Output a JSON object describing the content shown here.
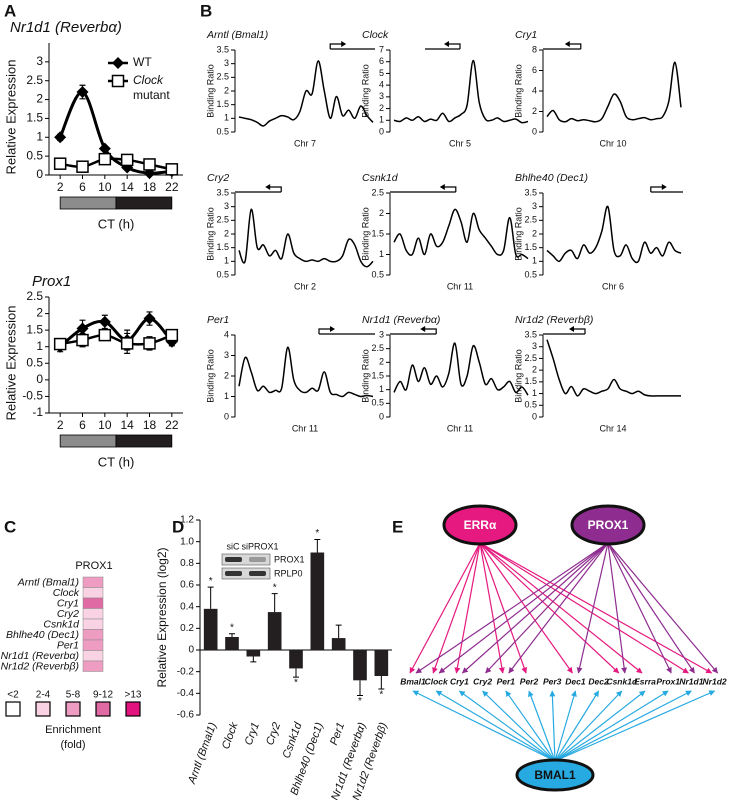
{
  "panel_labels": [
    "A",
    "B",
    "C",
    "D",
    "E"
  ],
  "chart_data": [
    {
      "type": "line",
      "title": "Nr1d1 (Reverbα)",
      "x": [
        2,
        6,
        10,
        14,
        18,
        22
      ],
      "xlim": [
        0,
        24
      ],
      "xticks": [
        2,
        6,
        10,
        14,
        18,
        22
      ],
      "ylim": [
        0,
        3.5
      ],
      "yticks": [
        0,
        0.5,
        1,
        1.5,
        2,
        2.5,
        3
      ],
      "y_label": "Relative Expression",
      "x_label": "CT (h)",
      "legend": "upper right",
      "series": [
        {
          "name": "WT",
          "color": "#000000",
          "marker": "diamond",
          "values": [
            1.0,
            2.2,
            0.7,
            0.2,
            0.05,
            0.1
          ],
          "errors": [
            0.08,
            0.18,
            0.05,
            0.04,
            0.03,
            0.03
          ]
        },
        {
          "name": "Clock mutant",
          "color": "#000000",
          "marker": "square",
          "values": [
            0.3,
            0.22,
            0.42,
            0.4,
            0.28,
            0.15
          ],
          "errors": [
            0.05,
            0.04,
            0.06,
            0.05,
            0.04,
            0.03
          ]
        }
      ]
    },
    {
      "type": "line",
      "title": "Prox1",
      "x": [
        2,
        6,
        10,
        14,
        18,
        22
      ],
      "xlim": [
        0,
        24
      ],
      "xticks": [
        2,
        6,
        10,
        14,
        18,
        22
      ],
      "ylim": [
        -1,
        2.5
      ],
      "yticks": [
        -1,
        -0.5,
        0,
        0.5,
        1,
        1.5,
        2,
        2.5
      ],
      "y_label": "Relative Expression",
      "x_label": "CT (h)",
      "series": [
        {
          "color": "#000000",
          "marker": "diamond",
          "values": [
            1.0,
            1.55,
            1.75,
            1.2,
            1.85,
            1.15
          ],
          "errors": [
            0.15,
            0.25,
            0.2,
            0.3,
            0.2,
            0.12
          ]
        },
        {
          "color": "#000000",
          "marker": "square",
          "values": [
            1.08,
            1.2,
            1.35,
            1.1,
            1.1,
            1.35
          ],
          "errors": [
            0.15,
            0.2,
            0.15,
            0.3,
            0.2,
            0.1
          ]
        }
      ]
    },
    {
      "type": "line",
      "title": "Arntl (Bmal1)",
      "x_label": "Chr 7",
      "y_label": "Binding Ratio",
      "ylim": [
        0.5,
        3.5
      ],
      "yticks": [
        0.5,
        1,
        1.5,
        2,
        2.5,
        3,
        3.5
      ],
      "color": "#000000",
      "values": [
        1.05,
        1.0,
        0.95,
        0.85,
        0.72,
        0.9,
        1.0,
        1.1,
        1.05,
        0.95,
        1.25,
        2.0,
        1.9,
        3.1,
        2.0,
        1.0,
        1.8,
        1.1,
        1.3,
        1.0,
        1.45,
        1.1,
        0.85
      ]
    },
    {
      "type": "line",
      "title": "Clock",
      "x_label": "Chr 5",
      "y_label": "Binding Ratio",
      "ylim": [
        0,
        7
      ],
      "yticks": [
        0,
        1,
        2,
        3,
        4,
        5,
        6,
        7
      ],
      "color": "#000000",
      "values": [
        1.0,
        0.9,
        1.2,
        1.0,
        1.3,
        0.9,
        1.1,
        1.0,
        1.6,
        0.9,
        1.2,
        1.5,
        2.3,
        6.1,
        2.5,
        1.1,
        1.0,
        1.2,
        0.9,
        1.0,
        1.1,
        0.8,
        0.9
      ]
    },
    {
      "type": "line",
      "title": "Cry1",
      "x_label": "Chr 10",
      "y_label": "Binding Ratio",
      "ylim": [
        0,
        8
      ],
      "yticks": [
        0,
        2,
        4,
        6,
        8
      ],
      "color": "#000000",
      "values": [
        1.5,
        2.1,
        1.2,
        1.0,
        1.3,
        1.1,
        1.2,
        1.1,
        1.0,
        1.3,
        2.5,
        3.7,
        3.0,
        1.5,
        1.2,
        1.3,
        1.4,
        1.2,
        1.3,
        1.5,
        3.0,
        6.8,
        2.4
      ]
    },
    {
      "type": "line",
      "title": "Cry2",
      "x_label": "Chr 2",
      "y_label": "Binding Ratio",
      "ylim": [
        0.5,
        3.5
      ],
      "yticks": [
        0.5,
        1,
        1.5,
        2,
        2.5,
        3,
        3.5
      ],
      "color": "#000000",
      "values": [
        1.4,
        1.0,
        2.9,
        1.5,
        1.6,
        1.2,
        1.4,
        1.1,
        2.0,
        1.3,
        1.1,
        1.0,
        1.05,
        1.0,
        1.1,
        1.0,
        1.0,
        1.2,
        1.8,
        1.6,
        1.0,
        0.8,
        1.0
      ]
    },
    {
      "type": "line",
      "title": "Csnk1d",
      "x_label": "Chr 11",
      "y_label": "Binding Ratio",
      "ylim": [
        0.5,
        2.5
      ],
      "yticks": [
        0.5,
        1,
        1.5,
        2,
        2.5
      ],
      "color": "#000000",
      "values": [
        1.3,
        1.5,
        1.1,
        1.0,
        1.4,
        1.0,
        1.5,
        1.2,
        1.3,
        1.7,
        2.1,
        1.8,
        1.3,
        2.0,
        1.6,
        1.4,
        1.2,
        1.0,
        1.1,
        1.9,
        1.0,
        1.0,
        0.9
      ]
    },
    {
      "type": "line",
      "title": "Bhlhe40 (Dec1)",
      "x_label": "Chr 6",
      "y_label": "Binding Ratio",
      "ylim": [
        0.5,
        3.5
      ],
      "yticks": [
        0.5,
        1,
        1.5,
        2,
        2.5,
        3,
        3.5
      ],
      "color": "#000000",
      "values": [
        1.4,
        1.2,
        1.0,
        1.3,
        1.4,
        1.1,
        1.6,
        1.3,
        1.5,
        2.1,
        3.0,
        1.4,
        1.2,
        1.6,
        1.1,
        1.0,
        1.7,
        1.3,
        1.5,
        1.2,
        1.7,
        1.4,
        1.3
      ]
    },
    {
      "type": "line",
      "title": "Per1",
      "x_label": "Chr 11",
      "y_label": "Binding Ratio",
      "ylim": [
        0,
        4
      ],
      "yticks": [
        0,
        1,
        2,
        3,
        4
      ],
      "color": "#000000",
      "values": [
        1.5,
        2.9,
        2.2,
        1.3,
        1.5,
        1.2,
        1.3,
        1.4,
        3.4,
        1.8,
        1.3,
        1.2,
        1.4,
        1.3,
        2.2,
        1.2,
        1.1,
        1.0,
        1.2,
        1.1,
        1.0,
        1.05,
        1.0
      ]
    },
    {
      "type": "line",
      "title": "Nr1d1 (Reverbα)",
      "x_label": "Chr 11",
      "y_label": "Binding Ratio",
      "ylim": [
        0,
        3
      ],
      "yticks": [
        0,
        0.5,
        1,
        1.5,
        2,
        2.5,
        3
      ],
      "color": "#000000",
      "values": [
        0.9,
        1.3,
        1.0,
        1.9,
        1.3,
        1.8,
        1.2,
        1.5,
        1.1,
        1.6,
        2.7,
        1.2,
        1.5,
        2.6,
        2.0,
        1.2,
        1.4,
        1.0,
        1.1,
        1.3,
        0.9,
        1.1,
        0.8
      ]
    },
    {
      "type": "line",
      "title": "Nr1d2 (Reverbβ)",
      "x_label": "Chr 14",
      "y_label": "Binding Ratio",
      "ylim": [
        0,
        3.5
      ],
      "yticks": [
        0,
        0.5,
        1,
        1.5,
        2,
        2.5,
        3,
        3.5
      ],
      "color": "#000000",
      "values": [
        3.3,
        2.5,
        1.6,
        1.0,
        1.3,
        0.9,
        1.2,
        1.1,
        1.0,
        1.1,
        1.2,
        1.6,
        1.2,
        1.1,
        1.0,
        1.1,
        0.95,
        0.9,
        0.9,
        0.9,
        0.9,
        0.9,
        0.9
      ]
    },
    {
      "type": "bar",
      "y_label": "Relative Expression (log2)",
      "color": "#231f20",
      "categories": [
        "Arntl (Bmal1)",
        "Clock",
        "Cry1",
        "Cry2",
        "Csnk1d",
        "Bhlhe40 (Dec1)",
        "Per1",
        "Nr1d1 (Reverbα)",
        "Nr1d2 (Reverbβ)"
      ],
      "values": [
        0.38,
        0.12,
        -0.06,
        0.35,
        -0.17,
        0.9,
        0.11,
        -0.28,
        -0.24
      ],
      "errors": [
        0.2,
        0.03,
        0.05,
        0.17,
        0.08,
        0.12,
        0.12,
        0.14,
        0.12
      ],
      "asterisks": [
        "*",
        "*",
        null,
        "*",
        "*",
        "*",
        null,
        "*",
        "*"
      ],
      "ylim": [
        -0.6,
        1.2
      ],
      "yticks": [
        -0.6,
        -0.4,
        -0.2,
        0,
        0.2,
        0.4,
        0.6,
        0.8,
        {
          "value": 1,
          "label": "1.0"
        },
        1.2
      ],
      "inset": {
        "lanes": [
          "siC",
          "siPROX1"
        ],
        "bands": [
          "PROX1",
          "RPLP0"
        ]
      }
    }
  ],
  "heatmap": {
    "column": "PROX1",
    "rows": [
      {
        "gene": "Arntl (Bmal1)",
        "color": "#ef9cc2"
      },
      {
        "gene": "Clock",
        "color": "#f9d3e3"
      },
      {
        "gene": "Cry1",
        "color": "#e06aa3"
      },
      {
        "gene": "Cry2",
        "color": "#f9d3e3"
      },
      {
        "gene": "Csnk1d",
        "color": "#f9d3e3"
      },
      {
        "gene": "Bhlhe40 (Dec1)",
        "color": "#ef9cc2"
      },
      {
        "gene": "Per1",
        "color": "#ef9cc2"
      },
      {
        "gene": "Nr1d1 (Reverbα)",
        "color": "#f9d3e3"
      },
      {
        "gene": "Nr1d2 (Reverbβ)",
        "color": "#ef9cc2"
      }
    ],
    "legend": [
      {
        "label": "<2",
        "color": "#ffffff"
      },
      {
        "label": "2-4",
        "color": "#f9d3e3"
      },
      {
        "label": "5-8",
        "color": "#ef9cc2"
      },
      {
        "label": "9-12",
        "color": "#e06aa3"
      },
      {
        "label": ">13",
        "color": "#e2137f"
      }
    ],
    "legend_title": "Enrichment (fold)"
  },
  "network": {
    "regulators": [
      {
        "label": "ERRα",
        "color": "#e5197f",
        "targets": [
          0,
          1,
          2,
          4,
          5,
          7,
          9,
          10,
          12,
          13
        ]
      },
      {
        "label": "PROX1",
        "color": "#8e2d8f",
        "targets": [
          0,
          1,
          2,
          3,
          4,
          7,
          9,
          11,
          12,
          13
        ]
      }
    ],
    "genes": [
      "Bmal1",
      "Clock",
      "Cry1",
      "Cry2",
      "Per1",
      "Per2",
      "Per3",
      "Dec1",
      "Dec2",
      "Csnk1d",
      "Esrra",
      "Prox1",
      "Nr1d1",
      "Nr1d2"
    ],
    "hub": {
      "label": "BMAL1",
      "color": "#27aae1"
    }
  }
}
